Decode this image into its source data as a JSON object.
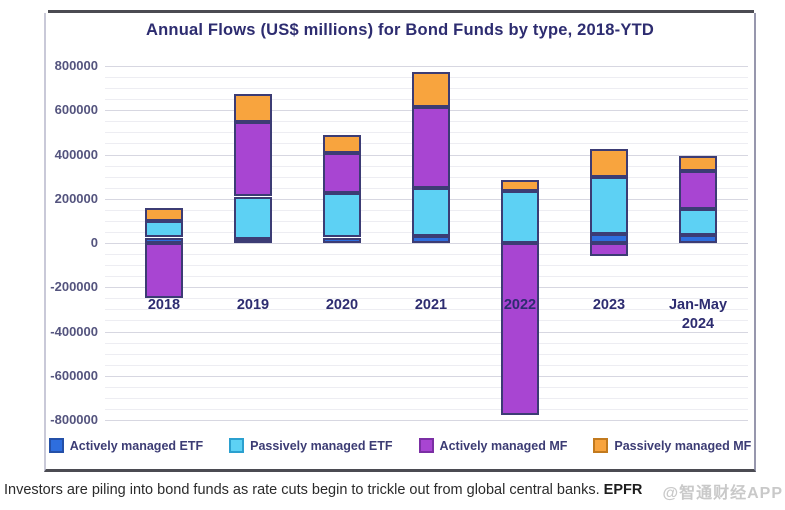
{
  "chart_data": {
    "type": "bar",
    "stacked": true,
    "title": "Annual Flows (US$ millions) for Bond Funds by type, 2018-YTD",
    "categories": [
      "2018",
      "2019",
      "2020",
      "2021",
      "2022",
      "2023",
      "Jan-May 2024"
    ],
    "series": [
      {
        "name": "Actively managed ETF",
        "color": "#2e6ede",
        "border": "#2450a8",
        "values": [
          25000,
          20000,
          25000,
          30000,
          0,
          40000,
          35000
        ]
      },
      {
        "name": "Passively managed ETF",
        "color": "#5dd1f4",
        "border": "#2ba0cf",
        "values": [
          75000,
          190000,
          200000,
          220000,
          235000,
          260000,
          120000
        ]
      },
      {
        "name": "Actively managed MF",
        "color": "#a845d2",
        "border": "#7b2fa4",
        "values": [
          -250000,
          335000,
          180000,
          365000,
          -775000,
          -60000,
          170000
        ]
      },
      {
        "name": "Passively managed MF",
        "color": "#f8a43e",
        "border": "#c27a1e",
        "values": [
          60000,
          130000,
          85000,
          160000,
          50000,
          125000,
          70000
        ]
      }
    ],
    "ylim": [
      -800000,
      800000
    ],
    "ytick_step": 200000,
    "minor_grid_step": 50000,
    "grid": true,
    "legend_position": "bottom",
    "ytick_labels": [
      "800000",
      "600000",
      "400000",
      "200000",
      "0",
      "-200000",
      "-400000",
      "-600000",
      "-800000"
    ]
  },
  "caption": {
    "text": "Investors are piling into bond funds as rate cuts begin to trickle out from global central banks.",
    "source": "EPFR"
  },
  "watermark": "@智通财经APP",
  "colors": {
    "title": "#2d2c70",
    "axis_label": "#54547e",
    "category_label": "#2d2c70",
    "grid_major": "#d7d7e1",
    "grid_minor": "#ededf2",
    "segment_border": "#3c3c74",
    "frame_rule": "#4b4b52",
    "legend_text": "#3c3c74"
  }
}
